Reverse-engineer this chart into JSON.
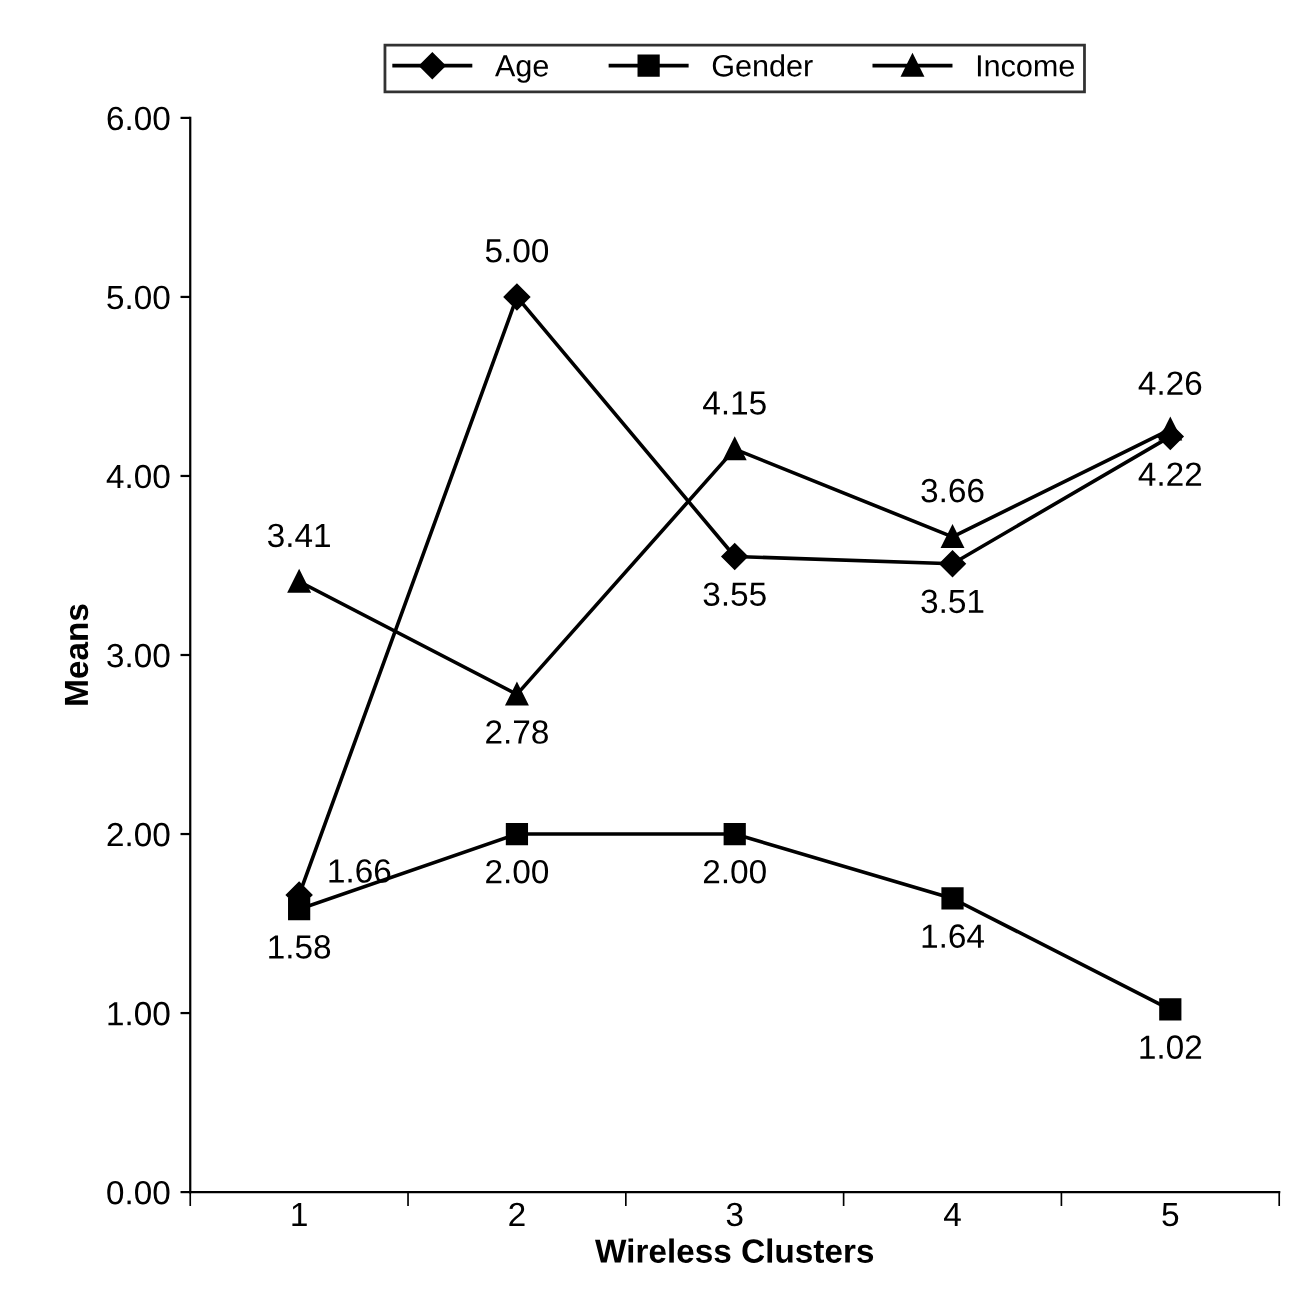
{
  "chart_data": {
    "type": "line",
    "xlabel": "Wireless Clusters",
    "ylabel": "Means",
    "categories": [
      "1",
      "2",
      "3",
      "4",
      "5"
    ],
    "series": [
      {
        "name": "Age",
        "color": "#000000",
        "marker": "diamond",
        "values": [
          1.66,
          5.0,
          3.55,
          3.51,
          4.22
        ],
        "value_labels": [
          "1.66",
          "5.00",
          "3.55",
          "3.51",
          "4.22"
        ]
      },
      {
        "name": "Gender",
        "color": "#000000",
        "marker": "square",
        "values": [
          1.58,
          2.0,
          2.0,
          1.64,
          1.02
        ],
        "value_labels": [
          "1.58",
          "2.00",
          "2.00",
          "1.64",
          "1.02"
        ]
      },
      {
        "name": "Income",
        "color": "#000000",
        "marker": "triangle",
        "values": [
          3.41,
          2.78,
          4.15,
          3.66,
          4.26
        ],
        "value_labels": [
          "3.41",
          "2.78",
          "4.15",
          "3.66",
          "4.26"
        ]
      }
    ],
    "ylim": [
      0,
      6
    ],
    "yticks": [
      {
        "value": 0,
        "label": "0.00"
      },
      {
        "value": 1,
        "label": "1.00"
      },
      {
        "value": 2,
        "label": "2.00"
      },
      {
        "value": 3,
        "label": "3.00"
      },
      {
        "value": 4,
        "label": "4.00"
      },
      {
        "value": 5,
        "label": "5.00"
      },
      {
        "value": 6,
        "label": "6.00"
      }
    ],
    "grid": false,
    "legend": "top",
    "line_style": "solid"
  }
}
